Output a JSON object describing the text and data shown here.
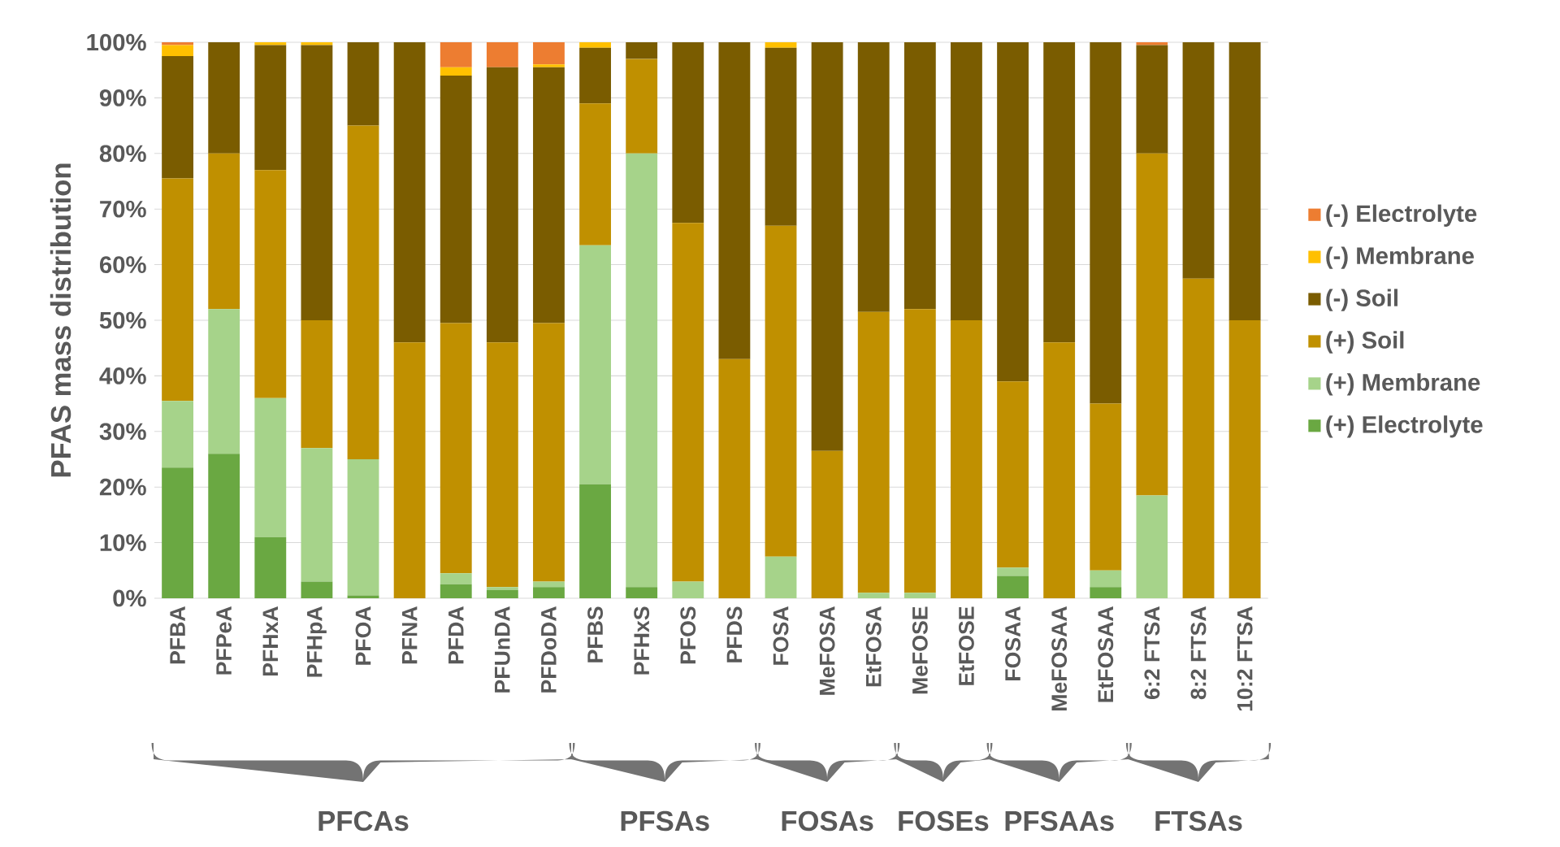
{
  "chart_data": {
    "type": "bar",
    "stacked": true,
    "ylabel": "PFAS mass distribution",
    "categories": [
      "PFBA",
      "PFPeA",
      "PFHxA",
      "PFHpA",
      "PFOA",
      "PFNA",
      "PFDA",
      "PFUnDA",
      "PFDoDA",
      "PFBS",
      "PFHxS",
      "PFOS",
      "PFDS",
      "FOSA",
      "MeFOSA",
      "EtFOSA",
      "MeFOSE",
      "EtFOSE",
      "FOSAA",
      "MeFOSAA",
      "EtFOSAA",
      "6:2 FTSA",
      "8:2 FTSA",
      "10:2 FTSA"
    ],
    "series": [
      {
        "name": "(+) Electrolyte",
        "color": "#6aa842",
        "values": [
          23.5,
          26,
          11,
          3,
          0.5,
          0,
          2.5,
          1.5,
          2,
          20.5,
          2,
          0,
          0,
          0,
          0,
          0,
          0,
          0,
          4,
          0,
          2,
          0,
          0,
          0
        ]
      },
      {
        "name": "(+) Membrane",
        "color": "#a6d38a",
        "values": [
          12,
          26,
          25,
          24,
          24.5,
          0,
          2,
          0.5,
          1,
          43,
          78,
          3,
          0,
          7.5,
          0,
          1,
          1,
          0,
          1.5,
          0,
          3,
          18.5,
          0,
          0
        ]
      },
      {
        "name": "(+) Soil",
        "color": "#c09000",
        "values": [
          40,
          28,
          41,
          23,
          60,
          46,
          45,
          44,
          46.5,
          25.5,
          17,
          64.5,
          43,
          59.5,
          26.5,
          50.5,
          51,
          50,
          33.5,
          46,
          30,
          61.5,
          57.5,
          50
        ]
      },
      {
        "name": "(-) Soil",
        "color": "#7a5c00",
        "values": [
          22,
          20,
          22.5,
          49.5,
          15,
          54,
          44.5,
          49.5,
          46,
          10,
          3,
          32.5,
          57,
          32,
          73.5,
          48.5,
          48,
          50,
          61,
          54,
          65,
          19.5,
          42.5,
          50
        ]
      },
      {
        "name": "(-) Membrane",
        "color": "#ffc000",
        "values": [
          2,
          0,
          0.5,
          0.5,
          0,
          0,
          1.5,
          0,
          0.5,
          1,
          0,
          0,
          0,
          1,
          0,
          0,
          0,
          0,
          0,
          0,
          0,
          0,
          0,
          0
        ]
      },
      {
        "name": "(-) Electrolyte",
        "color": "#ed7d31",
        "values": [
          0.5,
          0,
          0,
          0,
          0,
          0,
          4.5,
          4.5,
          4,
          0,
          0,
          0,
          0,
          0,
          0,
          0,
          0,
          0,
          0,
          0,
          0,
          0.5,
          0,
          0
        ]
      }
    ],
    "ylim": [
      0,
      100
    ],
    "yticks": [
      {
        "value": 0,
        "label": "0%"
      },
      {
        "value": 10,
        "label": "10%"
      },
      {
        "value": 20,
        "label": "20%"
      },
      {
        "value": 30,
        "label": "30%"
      },
      {
        "value": 40,
        "label": "40%"
      },
      {
        "value": 50,
        "label": "50%"
      },
      {
        "value": 60,
        "label": "60%"
      },
      {
        "value": 70,
        "label": "70%"
      },
      {
        "value": 80,
        "label": "80%"
      },
      {
        "value": 90,
        "label": "90%"
      },
      {
        "value": 100,
        "label": "100%"
      }
    ],
    "grid": "y",
    "legend": "right",
    "annotations": [
      "PFCAs",
      "PFSAs",
      "FOSAs",
      "FOSEs",
      "PFSAAs",
      "FTSAs"
    ]
  }
}
